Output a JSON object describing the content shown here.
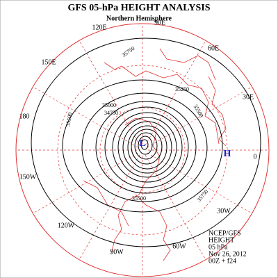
{
  "header": {
    "title": "GFS 05-hPa HEIGHT ANALYSIS",
    "subtitle": "Northern Hemisphere"
  },
  "longitude_labels": [
    "90E",
    "120E",
    "60E",
    "150E",
    "30E",
    "180",
    "0",
    "150W",
    "30W",
    "120W",
    "60W",
    "90W"
  ],
  "contour_labels": [
    "35750",
    "35250",
    "35000",
    "34750",
    "35500",
    "35500",
    "35500",
    "35750"
  ],
  "centers": {
    "low": "L",
    "high": "H"
  },
  "footer": [
    "NCEP/GFS",
    "HEIGHT",
    "05 hPa",
    "Nov 26, 2012",
    "00Z + f24"
  ]
}
